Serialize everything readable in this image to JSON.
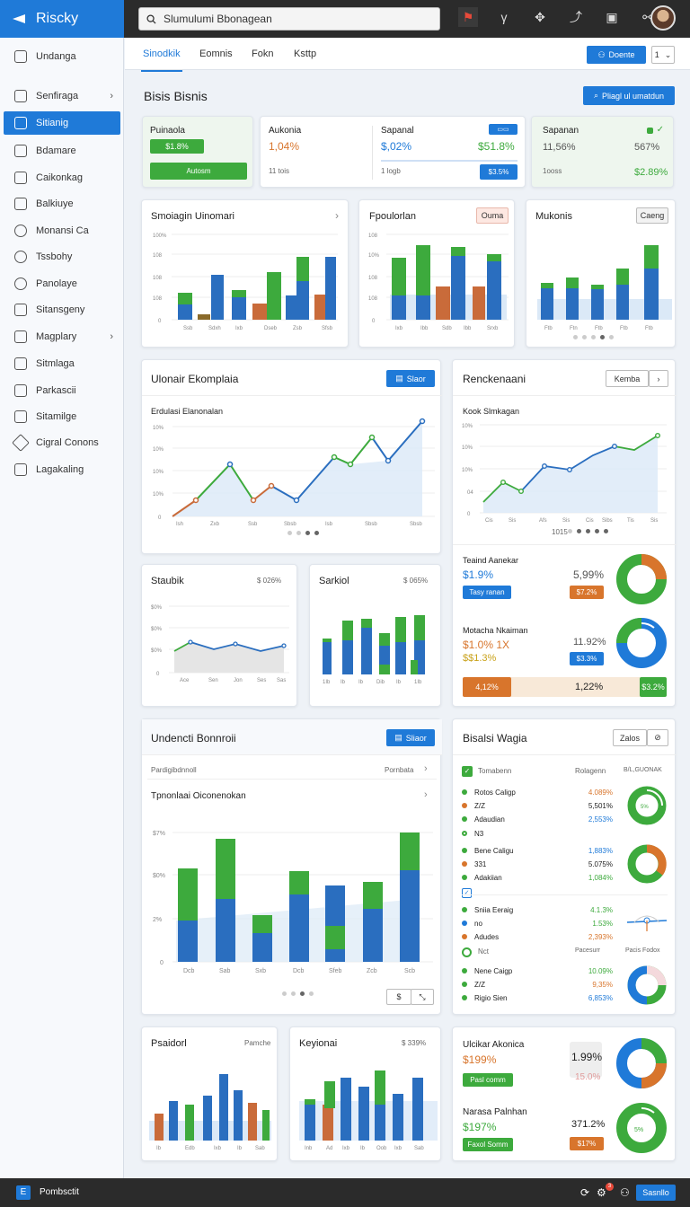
{
  "app": {
    "name": "Riscky"
  },
  "search": {
    "value": "Slumulumi Bbonagean"
  },
  "sidebar": {
    "items": [
      {
        "label": "Undanga"
      },
      {
        "label": "Senfiraga"
      },
      {
        "label": "Sitianig"
      },
      {
        "label": "Bdamare"
      },
      {
        "label": "Caikonkag"
      },
      {
        "label": "Balkiuye"
      },
      {
        "label": "Monansi Ca"
      },
      {
        "label": "Tssbohy"
      },
      {
        "label": "Panolaye"
      },
      {
        "label": "Sitansgeny"
      },
      {
        "label": "Magplary"
      },
      {
        "label": "Sitmlaga"
      },
      {
        "label": "Parkascii"
      },
      {
        "label": "Sitamilge"
      },
      {
        "label": "Cigral Conons"
      },
      {
        "label": "Lagakaling"
      }
    ]
  },
  "header": {
    "tabs": [
      "Sinodkik",
      "Eomnis",
      "Fokn",
      "Ksttp"
    ],
    "primary_button": "Doente",
    "page_select": "1"
  },
  "page": {
    "title": "Bisis Bisnis",
    "action": "Pliagl ul umatdun"
  },
  "kpis": [
    {
      "title": "Puinaola",
      "value": "$1.8%",
      "button": "Autosm"
    },
    {
      "title": "Aukonia",
      "value": "1,04%",
      "sub": "11 tois"
    },
    {
      "title": "Sapanal",
      "value": "$,02%",
      "value2": "$51.8%",
      "sub": "1 logb",
      "badge": "$3.5%"
    },
    {
      "title": "Sapanan",
      "value": "11,56%",
      "value2": "567%",
      "sub": "1ooss",
      "value3": "$2.89%"
    }
  ],
  "charts_row1": [
    {
      "title": "Smoiagin Uinomari"
    },
    {
      "title": "Fpoulorlan",
      "badge": "Ouma"
    },
    {
      "title": "Mukonis",
      "badge": "Caeng"
    }
  ],
  "line_main": {
    "title": "Ulonair Ekomplaia",
    "button": "Slaor",
    "subtitle": "Erdulasi Elanonalan"
  },
  "side_panel": {
    "title": "Renckenaani",
    "button": "Kemba",
    "subtitle": "Kook Slmkagan",
    "donut1": {
      "title": "Teaind Aanekar",
      "value": "$1.9%",
      "pct": "5,99%",
      "pill1": "Tasy ranan",
      "pill2": "$7.2%"
    },
    "donut2": {
      "title": "Motacha Nkaiman",
      "value": "$1.0% 1X",
      "value_b": "$$1.3%",
      "pct": "11.92%",
      "pill": "$3.3%"
    },
    "bar": {
      "left": "4,12%",
      "mid": "1,22%",
      "right": "$3.2%"
    }
  },
  "mini": [
    {
      "title": "Staubik",
      "badge": "$ 026%"
    },
    {
      "title": "Sarkiol",
      "badge": "$ 065%"
    }
  ],
  "big_bar": {
    "title": "Undencti Bonnroii",
    "button": "Sliaor",
    "crumb_left": "Pardigibdnnoll",
    "crumb_right": "Pornbata",
    "subtitle": "Tpnonlaai Oiconenokan"
  },
  "list_panel": {
    "title": "Bisalsi Wagia",
    "button": "Zalos",
    "headers": [
      "Tomabenn",
      "Rolagenn",
      "B/L,GUONAK"
    ],
    "groups": [
      [
        {
          "name": "Rotos Caligp",
          "val": "4.089%"
        },
        {
          "name": "Z/Z",
          "val": "5,501%"
        },
        {
          "name": "Adaudian",
          "val": "2,553%"
        }
      ],
      [
        {
          "name": "Bene Caligu",
          "val": "1,883%"
        },
        {
          "name": "331",
          "val": "5.075%"
        },
        {
          "name": "Adakiian",
          "val": "1,084%"
        }
      ],
      [
        {
          "name": "Sniia Eeraig",
          "val": "4.1.3%"
        },
        {
          "name": "no",
          "val": "1.53%"
        },
        {
          "name": "Adudes",
          "val": "2,393%"
        }
      ],
      [
        {
          "name": "Nene Caigp",
          "val": "10.09%"
        },
        {
          "name": "Z/Z",
          "val": "9,35%"
        },
        {
          "name": "Rigio Sien",
          "val": "6,853%"
        }
      ]
    ],
    "rows_extra": [
      {
        "name": "N3",
        "val": ""
      },
      {
        "name": "Nct",
        "val": "Pacesurr"
      }
    ],
    "footer_right": "Pacis Fodox"
  },
  "bottom_cards": [
    {
      "title": "Psaidorl",
      "right": "Pamche"
    },
    {
      "title": "Keyionai",
      "right": "$ 339%"
    }
  ],
  "bottom_right": {
    "t1": "Ulcikar Akonica",
    "v1": "$199%",
    "pill1": "Pasl comm",
    "p1": "1.99%",
    "p1b": "15.0%",
    "t2": "Narasa Palnhan",
    "v2": "$197%",
    "pill2": "Faxol Somm",
    "p2": "371.2%",
    "pill3": "$17%"
  },
  "footer": {
    "label": "Pombsctit",
    "button": "Sasnllo",
    "badge": "3"
  },
  "colors": {
    "blue": "#1f7ad8",
    "green": "#3daa3d",
    "orange": "#d8752c",
    "light_blue": "#dbe9f7"
  }
}
